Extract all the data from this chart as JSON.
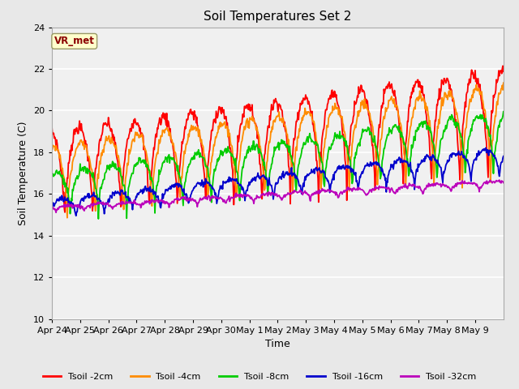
{
  "title": "Soil Temperatures Set 2",
  "xlabel": "Time",
  "ylabel": "Soil Temperature (C)",
  "ylim": [
    10,
    24
  ],
  "yticks": [
    10,
    12,
    14,
    16,
    18,
    20,
    22,
    24
  ],
  "annotation_text": "VR_met",
  "annotation_color": "#8B0000",
  "annotation_bg": "#FFFFCC",
  "bg_color": "#E8E8E8",
  "plot_bg": "#F0F0F0",
  "colors": {
    "Tsoil -2cm": "#FF0000",
    "Tsoil -4cm": "#FF8C00",
    "Tsoil -8cm": "#00CC00",
    "Tsoil -16cm": "#0000CC",
    "Tsoil -32cm": "#BB00BB"
  },
  "x_tick_labels": [
    "Apr 24",
    "Apr 25",
    "Apr 26",
    "Apr 27",
    "Apr 28",
    "Apr 29",
    "Apr 30",
    "May 1",
    "May 2",
    "May 3",
    "May 4",
    "May 5",
    "May 6",
    "May 7",
    "May 8",
    "May 9"
  ],
  "num_points": 768,
  "num_days": 16
}
